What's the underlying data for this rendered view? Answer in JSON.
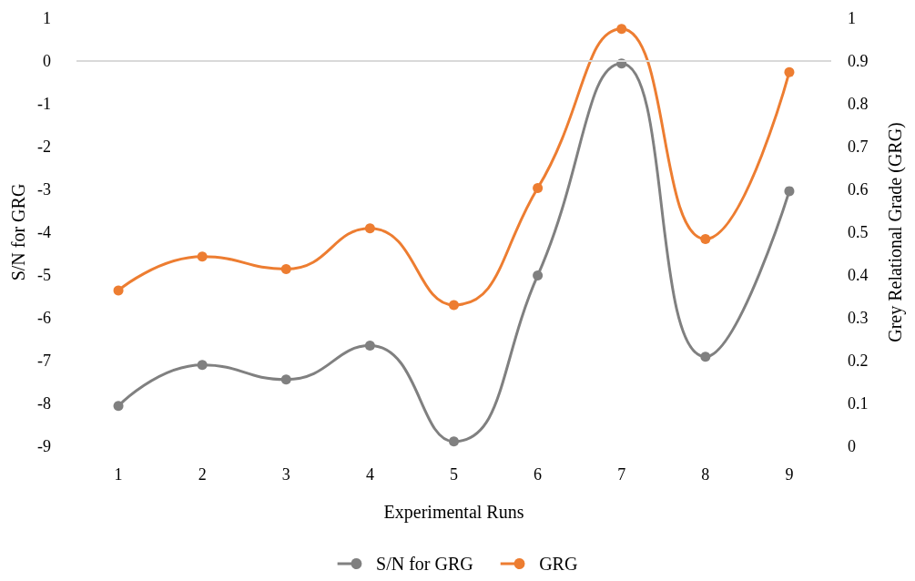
{
  "chart_data": {
    "type": "line",
    "xlabel": "Experimental Runs",
    "ylabel": "S/N for GRG",
    "y2label": "Grey Relational Grade (GRG)",
    "categories": [
      "1",
      "2",
      "3",
      "4",
      "5",
      "6",
      "7",
      "8",
      "9"
    ],
    "series": [
      {
        "name": "S/N for GRG",
        "color": "#808080",
        "values": [
          -8.06,
          -7.1,
          -7.44,
          -6.65,
          -8.89,
          -5.01,
          -0.06,
          -6.91,
          -3.04
        ]
      },
      {
        "name": "GRG",
        "color": "#ed7d31",
        "axis": "y2",
        "values": [
          0.364,
          0.443,
          0.414,
          0.509,
          0.33,
          0.603,
          0.975,
          0.484,
          0.874
        ]
      }
    ],
    "ylim": [
      -9,
      1
    ],
    "yticks": [
      -9,
      -8,
      -7,
      -6,
      -5,
      -4,
      -3,
      -2,
      -1,
      0,
      1
    ],
    "y2lim": [
      0,
      1
    ],
    "y2ticks": [
      0,
      0.1,
      0.2,
      0.3,
      0.4,
      0.5,
      0.6,
      0.7,
      0.8,
      0.9,
      1
    ],
    "ref_lines": [
      {
        "axis": "y",
        "value": 0,
        "color": "#d9d9d9"
      }
    ],
    "grid": false,
    "legend": "bottom",
    "marker": "circle",
    "line_style": "solid"
  }
}
